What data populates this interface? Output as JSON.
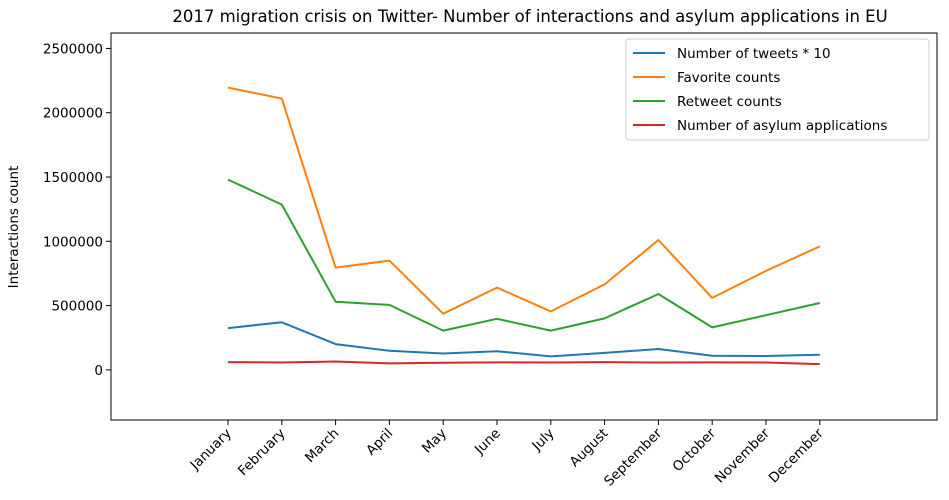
{
  "chart_data": {
    "type": "line",
    "title": "2017 migration crisis on Twitter- Number of interactions and asylum applications in EU",
    "xlabel": "",
    "ylabel": "Interactions count",
    "categories": [
      "January",
      "February",
      "March",
      "April",
      "May",
      "June",
      "July",
      "August",
      "September",
      "October",
      "November",
      "December"
    ],
    "ylim": [
      -390000,
      2620000
    ],
    "yticks": [
      0,
      500000,
      1000000,
      1500000,
      2000000,
      2500000
    ],
    "ytick_labels": [
      "0",
      "500000",
      "1000000",
      "1500000",
      "2000000",
      "2500000"
    ],
    "grid": false,
    "legend_position": "top-right",
    "series": [
      {
        "name": "Number of tweets * 10",
        "color": "#1f77b4",
        "values": [
          325000,
          370000,
          200000,
          148000,
          127000,
          145000,
          105000,
          132000,
          162000,
          110000,
          108000,
          118000
        ]
      },
      {
        "name": "Favorite counts",
        "color": "#ff7f0e",
        "values": [
          2195000,
          2110000,
          795000,
          850000,
          437000,
          640000,
          455000,
          665000,
          1010000,
          560000,
          770000,
          960000
        ]
      },
      {
        "name": "Retweet counts",
        "color": "#2ca02c",
        "values": [
          1480000,
          1285000,
          530000,
          505000,
          305000,
          397000,
          305000,
          400000,
          590000,
          330000,
          425000,
          520000
        ]
      },
      {
        "name": "Number of asylum applications",
        "color": "#d62728",
        "values": [
          60000,
          57000,
          65000,
          50000,
          55000,
          58000,
          57000,
          60000,
          57000,
          58000,
          57000,
          45000
        ]
      }
    ]
  }
}
